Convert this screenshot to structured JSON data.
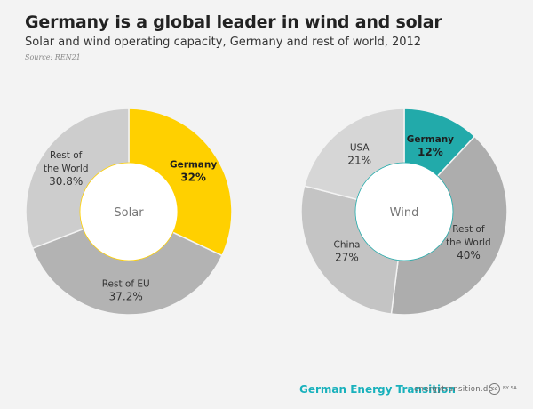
{
  "header": {
    "title": "Germany is a global leader in wind and solar",
    "subtitle": "Solar and wind operating capacity, Germany and rest of world, 2012",
    "source": "Source:  REN21"
  },
  "chart_data": [
    {
      "type": "pie",
      "center_label": "Solar",
      "categories": [
        "Germany",
        "Rest of EU",
        "Rest of the World"
      ],
      "values": [
        32,
        37.2,
        30.8
      ],
      "value_labels": [
        "32%",
        "37.2%",
        "30.8%"
      ],
      "label_lines": [
        [
          "Germany"
        ],
        [
          "Rest of EU"
        ],
        [
          "Rest of",
          "the World"
        ]
      ],
      "colors": [
        "#ffd000",
        "#b3b3b3",
        "#cdcdcd"
      ],
      "highlight": "Germany"
    },
    {
      "type": "pie",
      "center_label": "Wind",
      "categories": [
        "Germany",
        "Rest of the World",
        "China",
        "USA"
      ],
      "values": [
        12,
        40,
        27,
        21
      ],
      "value_labels": [
        "12%",
        "40%",
        "27%",
        "21%"
      ],
      "label_lines": [
        [
          "Germany"
        ],
        [
          "Rest of",
          "the World"
        ],
        [
          "China"
        ],
        [
          "USA"
        ]
      ],
      "colors": [
        "#22aaaa",
        "#adadad",
        "#c4c4c4",
        "#d6d6d6"
      ],
      "highlight": "Germany"
    }
  ],
  "footer": {
    "brand": "German Energy Transition",
    "url": "energytransition.de",
    "license_icon": "cc-icon",
    "license_text": "BY SA"
  }
}
